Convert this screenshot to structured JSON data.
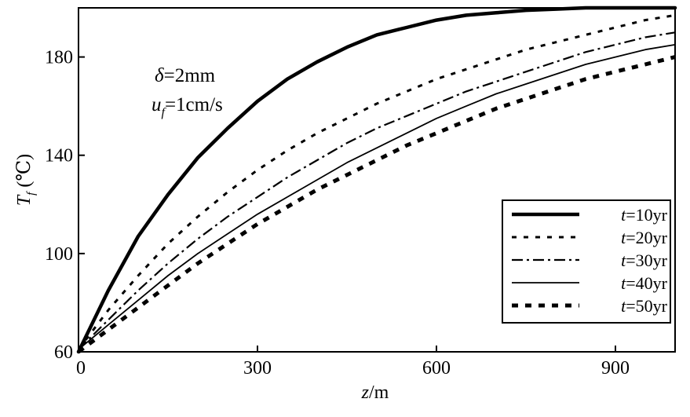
{
  "chart_data": {
    "type": "line",
    "xlabel": {
      "var": "z",
      "unit": "/m"
    },
    "ylabel": {
      "var": "T",
      "sub": "f",
      "unit": " (℃)"
    },
    "xlim": [
      0,
      1000
    ],
    "ylim": [
      60,
      200
    ],
    "xticks": [
      "0",
      "300",
      "600",
      "900"
    ],
    "yticks": [
      "60",
      "100",
      "140",
      "180"
    ],
    "xtick_values": [
      0,
      300,
      600,
      900
    ],
    "ytick_values": [
      60,
      100,
      140,
      180
    ],
    "grid": false,
    "legend_position": "bottom-right",
    "annotations": {
      "delta": {
        "sym": "δ",
        "text": "=2mm"
      },
      "uf": {
        "sym": "u",
        "sub": "f",
        "text": "=1cm/s"
      }
    },
    "series": [
      {
        "name": "t=10yr",
        "legend_var": "t",
        "legend_text": "=10yr",
        "style": "thick-solid",
        "color": "#000000",
        "x": [
          0,
          50,
          100,
          150,
          200,
          250,
          300,
          350,
          400,
          450,
          500,
          550,
          600,
          650,
          700,
          750,
          800,
          850,
          900,
          950,
          1000
        ],
        "y": [
          60,
          85,
          107,
          124,
          139,
          151,
          162,
          171,
          178,
          184,
          189,
          192,
          195,
          197,
          198,
          199,
          199.5,
          200,
          200,
          200,
          200
        ]
      },
      {
        "name": "t=20yr",
        "legend_var": "t",
        "legend_text": "=20yr",
        "style": "dotted",
        "color": "#000000",
        "x": [
          0,
          50,
          100,
          150,
          200,
          250,
          300,
          350,
          400,
          450,
          500,
          550,
          600,
          650,
          700,
          750,
          800,
          850,
          900,
          950,
          1000
        ],
        "y": [
          61,
          77,
          91,
          104,
          115,
          125,
          134,
          142,
          149,
          155,
          161,
          166,
          171,
          175,
          179,
          183,
          186,
          189,
          192,
          195,
          197
        ]
      },
      {
        "name": "t=30yr",
        "legend_var": "t",
        "legend_text": "=30yr",
        "style": "dash-dot",
        "color": "#000000",
        "x": [
          0,
          50,
          100,
          150,
          200,
          250,
          300,
          350,
          400,
          450,
          500,
          550,
          600,
          650,
          700,
          750,
          800,
          850,
          900,
          950,
          1000
        ],
        "y": [
          61,
          73,
          85,
          96,
          106,
          115,
          123,
          131,
          138,
          145,
          151,
          156,
          161,
          166,
          170,
          174,
          178,
          182,
          185,
          188,
          190
        ]
      },
      {
        "name": "t=40yr",
        "legend_var": "t",
        "legend_text": "=40yr",
        "style": "thin-solid",
        "color": "#000000",
        "x": [
          0,
          50,
          100,
          150,
          200,
          250,
          300,
          350,
          400,
          450,
          500,
          550,
          600,
          650,
          700,
          750,
          800,
          850,
          900,
          950,
          1000
        ],
        "y": [
          61,
          71,
          81,
          91,
          100,
          108,
          116,
          123,
          130,
          137,
          143,
          149,
          155,
          160,
          165,
          169,
          173,
          177,
          180,
          183,
          185
        ]
      },
      {
        "name": "t=50yr",
        "legend_var": "t",
        "legend_text": "=50yr",
        "style": "thick-dashed",
        "color": "#000000",
        "x": [
          0,
          50,
          100,
          150,
          200,
          250,
          300,
          350,
          400,
          450,
          500,
          550,
          600,
          650,
          700,
          750,
          800,
          850,
          900,
          950,
          1000
        ],
        "y": [
          60,
          69,
          78,
          87,
          96,
          104,
          112,
          119,
          126,
          132,
          138,
          144,
          149,
          154,
          159,
          163,
          167,
          171,
          174,
          177,
          180
        ]
      }
    ]
  }
}
